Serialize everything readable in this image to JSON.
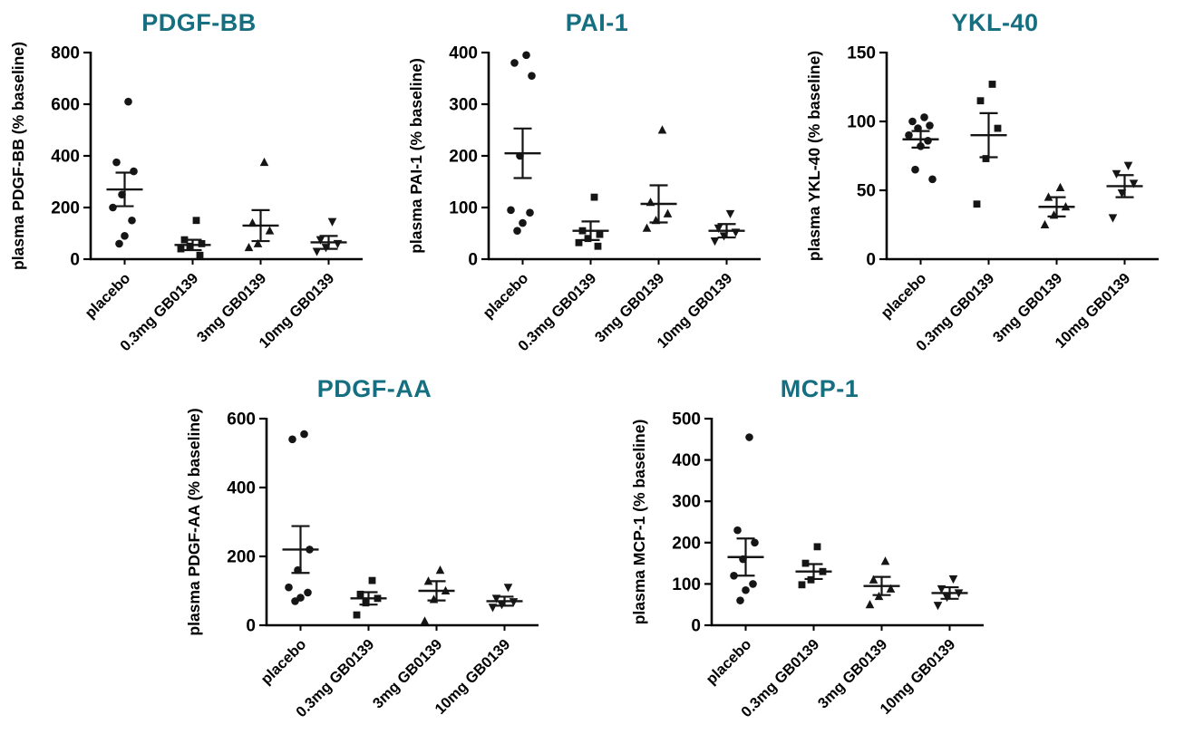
{
  "figure": {
    "title_color": "#156f80",
    "point_color": "#151515",
    "axis_color": "#000000"
  },
  "chart_data": [
    {
      "type": "scatter",
      "title": "PDGF-BB",
      "ylabel": "plasma PDGF-BB (% baseline)",
      "ylim": [
        0,
        800
      ],
      "yticks": [
        0,
        200,
        400,
        600,
        800
      ],
      "categories": [
        "placebo",
        "0.3mg GB0139",
        "3mg GB0139",
        "10mg GB0139"
      ],
      "markers": [
        "circle",
        "square",
        "triangle-up",
        "triangle-down"
      ],
      "series": [
        {
          "name": "placebo",
          "values": [
            610,
            375,
            340,
            250,
            200,
            150,
            90,
            60
          ],
          "mean": 270,
          "sem": 65
        },
        {
          "name": "0.3mg GB0139",
          "values": [
            150,
            75,
            60,
            50,
            40,
            15
          ],
          "mean": 55,
          "sem": 20
        },
        {
          "name": "3mg GB0139",
          "values": [
            375,
            140,
            110,
            60,
            45
          ],
          "mean": 130,
          "sem": 60
        },
        {
          "name": "10mg GB0139",
          "values": [
            145,
            75,
            60,
            45,
            30
          ],
          "mean": 65,
          "sem": 25
        }
      ]
    },
    {
      "type": "scatter",
      "title": "PAI-1",
      "ylabel": "plasma PAI-1 (% baseline)",
      "ylim": [
        0,
        400
      ],
      "yticks": [
        0,
        100,
        200,
        300,
        400
      ],
      "categories": [
        "placebo",
        "0.3mg GB0139",
        "3mg GB0139",
        "10mg GB0139"
      ],
      "markers": [
        "circle",
        "square",
        "triangle-up",
        "triangle-down"
      ],
      "series": [
        {
          "name": "placebo",
          "values": [
            395,
            380,
            355,
            200,
            95,
            90,
            70,
            55
          ],
          "mean": 205,
          "sem": 48
        },
        {
          "name": "0.3mg GB0139",
          "values": [
            120,
            55,
            48,
            40,
            32,
            25
          ],
          "mean": 55,
          "sem": 18
        },
        {
          "name": "3mg GB0139",
          "values": [
            250,
            110,
            88,
            75,
            60
          ],
          "mean": 107,
          "sem": 36
        },
        {
          "name": "10mg GB0139",
          "values": [
            88,
            60,
            52,
            45,
            35
          ],
          "mean": 55,
          "sem": 13
        }
      ]
    },
    {
      "type": "scatter",
      "title": "YKL-40",
      "ylabel": "plasma YKL-40 (% baseline)",
      "ylim": [
        0,
        150
      ],
      "yticks": [
        0,
        50,
        100,
        150
      ],
      "categories": [
        "placebo",
        "0.3mg GB0139",
        "3mg GB0139",
        "10mg GB0139"
      ],
      "markers": [
        "circle",
        "square",
        "triangle-up",
        "triangle-down"
      ],
      "series": [
        {
          "name": "placebo",
          "values": [
            103,
            100,
            97,
            95,
            90,
            86,
            82,
            65,
            58
          ],
          "mean": 87,
          "sem": 6
        },
        {
          "name": "0.3mg GB0139",
          "values": [
            127,
            115,
            95,
            73,
            40
          ],
          "mean": 90,
          "sem": 16
        },
        {
          "name": "3mg GB0139",
          "values": [
            52,
            45,
            38,
            32,
            25
          ],
          "mean": 38,
          "sem": 7
        },
        {
          "name": "10mg GB0139",
          "values": [
            68,
            62,
            55,
            48,
            30
          ],
          "mean": 53,
          "sem": 8
        }
      ]
    },
    {
      "type": "scatter",
      "title": "PDGF-AA",
      "ylabel": "plasma PDGF-AA (% baseline)",
      "ylim": [
        0,
        600
      ],
      "yticks": [
        0,
        200,
        400,
        600
      ],
      "categories": [
        "placebo",
        "0.3mg GB0139",
        "3mg GB0139",
        "10mg GB0139"
      ],
      "markers": [
        "circle",
        "square",
        "triangle-up",
        "triangle-down"
      ],
      "series": [
        {
          "name": "placebo",
          "values": [
            555,
            540,
            220,
            160,
            110,
            95,
            80,
            70
          ],
          "mean": 220,
          "sem": 68
        },
        {
          "name": "0.3mg GB0139",
          "values": [
            130,
            90,
            78,
            65,
            30
          ],
          "mean": 78,
          "sem": 18
        },
        {
          "name": "3mg GB0139",
          "values": [
            160,
            128,
            100,
            75,
            12
          ],
          "mean": 100,
          "sem": 28
        },
        {
          "name": "10mg GB0139",
          "values": [
            110,
            78,
            68,
            60,
            52
          ],
          "mean": 70,
          "sem": 13
        }
      ]
    },
    {
      "type": "scatter",
      "title": "MCP-1",
      "ylabel": "plasma MCP-1 (% baseline)",
      "ylim": [
        0,
        500
      ],
      "yticks": [
        0,
        100,
        200,
        300,
        400,
        500
      ],
      "categories": [
        "placebo",
        "0.3mg GB0139",
        "3mg GB0139",
        "10mg GB0139"
      ],
      "markers": [
        "circle",
        "square",
        "triangle-up",
        "triangle-down"
      ],
      "series": [
        {
          "name": "placebo",
          "values": [
            455,
            230,
            200,
            160,
            120,
            100,
            85,
            60
          ],
          "mean": 165,
          "sem": 45
        },
        {
          "name": "0.3mg GB0139",
          "values": [
            190,
            150,
            130,
            110,
            98
          ],
          "mean": 130,
          "sem": 18
        },
        {
          "name": "3mg GB0139",
          "values": [
            155,
            110,
            88,
            70,
            50
          ],
          "mean": 95,
          "sem": 22
        },
        {
          "name": "10mg GB0139",
          "values": [
            112,
            88,
            78,
            68,
            48
          ],
          "mean": 78,
          "sem": 14
        }
      ]
    }
  ]
}
